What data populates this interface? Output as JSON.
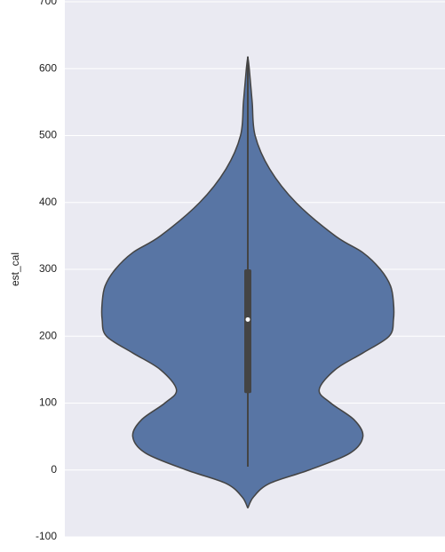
{
  "chart_data": {
    "type": "violin",
    "y_label": "est_cal",
    "ylim": [
      -100,
      700
    ],
    "yticks": [
      -100,
      0,
      100,
      200,
      300,
      400,
      500,
      600,
      700
    ],
    "grid": true,
    "color": "#5875a4",
    "background": "#eaeaf2",
    "kde_y": [
      -57,
      -40,
      -20,
      0,
      25,
      50,
      75,
      100,
      120,
      150,
      175,
      200,
      225,
      250,
      275,
      300,
      325,
      350,
      400,
      450,
      500,
      550,
      600,
      618
    ],
    "kde_density": [
      0,
      0.04,
      0.15,
      0.42,
      0.7,
      0.79,
      0.73,
      0.57,
      0.49,
      0.6,
      0.79,
      0.97,
      1,
      1,
      0.98,
      0.91,
      0.79,
      0.6,
      0.33,
      0.15,
      0.05,
      0.03,
      0.01,
      0
    ],
    "box": {
      "whisker_low": 5,
      "q1": 115,
      "median": 225,
      "q3": 300,
      "whisker_high": 618
    }
  }
}
